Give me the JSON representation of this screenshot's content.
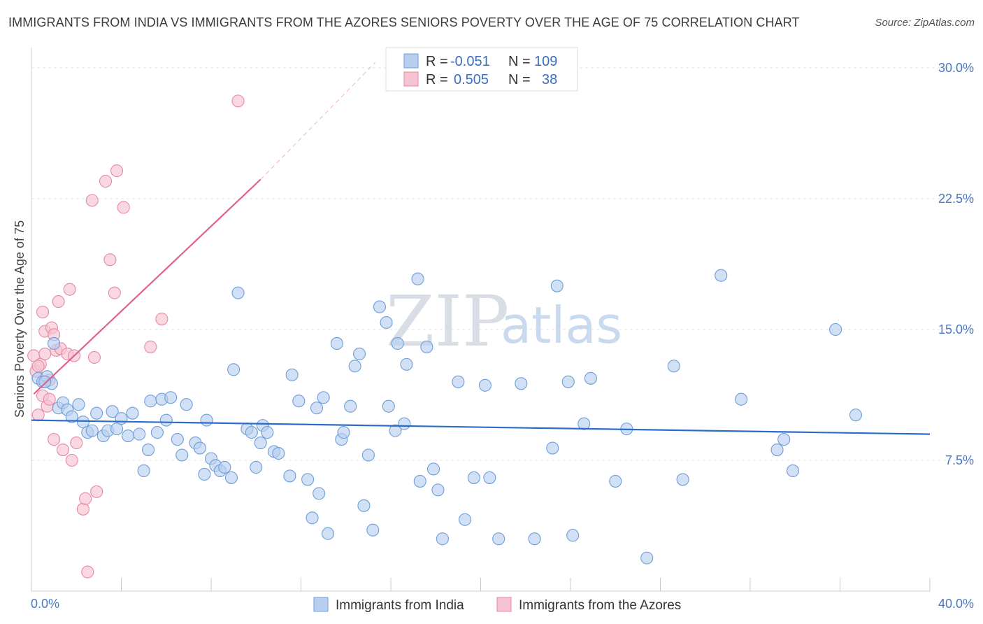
{
  "title": "IMMIGRANTS FROM INDIA VS IMMIGRANTS FROM THE AZORES SENIORS POVERTY OVER THE AGE OF 75 CORRELATION CHART",
  "source": "Source: ZipAtlas.com",
  "watermark": {
    "zip": "ZIP",
    "atlas": "atlas"
  },
  "colors": {
    "india_fill": "#b8cff0",
    "india_stroke": "#6f9ed8",
    "india_line": "#2a6cc8",
    "azores_fill": "#f6c3d2",
    "azores_stroke": "#e58aa6",
    "azores_line": "#e0628a",
    "grid": "#e3e3e3",
    "axis_text": "#4a78c2"
  },
  "legend": {
    "r_label": "R =",
    "n_label": "N =",
    "india": {
      "r": "-0.051",
      "n": "109"
    },
    "azores": {
      "r": "0.505",
      "n": "38"
    }
  },
  "chart_data": {
    "type": "scatter",
    "title": "IMMIGRANTS FROM INDIA VS IMMIGRANTS FROM THE AZORES SENIORS POVERTY OVER THE AGE OF 75 CORRELATION CHART",
    "xlabel": "",
    "ylabel": "Seniors Poverty Over the Age of 75",
    "xlim": [
      0,
      40
    ],
    "ylim": [
      0,
      31
    ],
    "x_tick_labels": {
      "left": "0.0%",
      "right": "40.0%"
    },
    "y_ticks": [
      {
        "value": 7.5,
        "label": "7.5%"
      },
      {
        "value": 15.0,
        "label": "15.0%"
      },
      {
        "value": 22.5,
        "label": "22.5%"
      },
      {
        "value": 30.0,
        "label": "30.0%"
      }
    ],
    "grid": true,
    "series": [
      {
        "name": "Immigrants from India",
        "r": -0.051,
        "n": 109,
        "trend": {
          "x": [
            0,
            40
          ],
          "y": [
            9.8,
            9.0
          ]
        },
        "points": [
          [
            0.3,
            12.2
          ],
          [
            0.5,
            12.0
          ],
          [
            0.7,
            12.3
          ],
          [
            0.9,
            11.9
          ],
          [
            1.0,
            14.2
          ],
          [
            1.2,
            10.5
          ],
          [
            1.4,
            10.8
          ],
          [
            1.6,
            10.4
          ],
          [
            1.8,
            10.0
          ],
          [
            2.1,
            10.7
          ],
          [
            2.3,
            9.7
          ],
          [
            2.5,
            9.1
          ],
          [
            2.7,
            9.2
          ],
          [
            2.9,
            10.2
          ],
          [
            3.2,
            8.9
          ],
          [
            3.4,
            9.2
          ],
          [
            3.6,
            10.3
          ],
          [
            3.8,
            9.3
          ],
          [
            4.0,
            9.9
          ],
          [
            4.3,
            8.9
          ],
          [
            4.5,
            10.2
          ],
          [
            4.8,
            9.0
          ],
          [
            5.0,
            6.9
          ],
          [
            5.2,
            8.1
          ],
          [
            5.3,
            10.9
          ],
          [
            5.6,
            9.1
          ],
          [
            5.8,
            11.0
          ],
          [
            6.0,
            9.8
          ],
          [
            6.2,
            11.1
          ],
          [
            6.5,
            8.7
          ],
          [
            6.7,
            7.8
          ],
          [
            6.9,
            10.7
          ],
          [
            7.3,
            8.5
          ],
          [
            7.5,
            8.2
          ],
          [
            7.7,
            6.7
          ],
          [
            7.8,
            9.8
          ],
          [
            8.0,
            7.6
          ],
          [
            8.2,
            7.2
          ],
          [
            8.4,
            6.9
          ],
          [
            8.6,
            7.1
          ],
          [
            9.0,
            12.7
          ],
          [
            8.9,
            6.5
          ],
          [
            9.2,
            17.1
          ],
          [
            9.6,
            9.3
          ],
          [
            9.8,
            9.1
          ],
          [
            10.0,
            7.1
          ],
          [
            10.2,
            8.5
          ],
          [
            10.3,
            9.5
          ],
          [
            10.5,
            9.1
          ],
          [
            10.8,
            8.0
          ],
          [
            11.0,
            7.9
          ],
          [
            11.5,
            6.6
          ],
          [
            11.6,
            12.4
          ],
          [
            11.9,
            10.9
          ],
          [
            12.3,
            6.4
          ],
          [
            12.5,
            4.2
          ],
          [
            12.7,
            10.5
          ],
          [
            12.8,
            5.6
          ],
          [
            13.0,
            11.1
          ],
          [
            13.2,
            3.3
          ],
          [
            13.6,
            14.2
          ],
          [
            13.8,
            8.7
          ],
          [
            13.9,
            9.1
          ],
          [
            14.2,
            10.6
          ],
          [
            14.4,
            12.9
          ],
          [
            14.6,
            13.6
          ],
          [
            14.8,
            4.9
          ],
          [
            15.0,
            7.8
          ],
          [
            15.2,
            3.5
          ],
          [
            15.5,
            16.3
          ],
          [
            15.8,
            15.4
          ],
          [
            15.9,
            10.6
          ],
          [
            16.2,
            9.2
          ],
          [
            16.3,
            14.2
          ],
          [
            16.6,
            9.6
          ],
          [
            16.7,
            13.0
          ],
          [
            17.2,
            17.9
          ],
          [
            17.3,
            6.3
          ],
          [
            17.6,
            14.0
          ],
          [
            17.9,
            7.0
          ],
          [
            18.1,
            5.8
          ],
          [
            18.3,
            3.0
          ],
          [
            19.0,
            12.0
          ],
          [
            19.3,
            4.1
          ],
          [
            19.7,
            6.5
          ],
          [
            20.2,
            11.8
          ],
          [
            20.4,
            6.5
          ],
          [
            20.8,
            3.0
          ],
          [
            21.8,
            11.9
          ],
          [
            22.4,
            3.0
          ],
          [
            23.2,
            8.2
          ],
          [
            23.4,
            17.5
          ],
          [
            23.9,
            12.0
          ],
          [
            24.1,
            3.2
          ],
          [
            24.6,
            9.6
          ],
          [
            24.9,
            12.2
          ],
          [
            26.0,
            6.3
          ],
          [
            26.5,
            9.3
          ],
          [
            27.4,
            1.9
          ],
          [
            28.6,
            12.9
          ],
          [
            29.0,
            6.4
          ],
          [
            30.7,
            18.1
          ],
          [
            31.6,
            11.0
          ],
          [
            33.2,
            8.1
          ],
          [
            33.5,
            8.7
          ],
          [
            33.9,
            6.9
          ],
          [
            35.8,
            15.0
          ],
          [
            36.7,
            10.1
          ],
          [
            0.6,
            12.0
          ]
        ]
      },
      {
        "name": "Immigrants from the Azores",
        "r": 0.505,
        "n": 38,
        "trend": {
          "x": [
            0.1,
            10.2
          ],
          "y": [
            11.3,
            23.6
          ],
          "dashed_to": [
            15.3,
            30.3
          ]
        },
        "points": [
          [
            0.1,
            13.5
          ],
          [
            0.2,
            12.6
          ],
          [
            0.3,
            10.1
          ],
          [
            0.4,
            13.0
          ],
          [
            0.5,
            11.2
          ],
          [
            0.5,
            16.0
          ],
          [
            0.6,
            14.9
          ],
          [
            0.7,
            10.6
          ],
          [
            0.8,
            11.0
          ],
          [
            0.9,
            15.1
          ],
          [
            1.0,
            14.7
          ],
          [
            1.1,
            13.8
          ],
          [
            1.0,
            8.7
          ],
          [
            1.2,
            16.6
          ],
          [
            1.3,
            13.9
          ],
          [
            1.4,
            8.1
          ],
          [
            1.6,
            13.6
          ],
          [
            1.7,
            17.3
          ],
          [
            1.8,
            7.5
          ],
          [
            1.9,
            13.5
          ],
          [
            2.0,
            8.5
          ],
          [
            2.3,
            4.7
          ],
          [
            2.4,
            5.3
          ],
          [
            2.5,
            1.1
          ],
          [
            2.7,
            22.4
          ],
          [
            2.8,
            13.4
          ],
          [
            2.9,
            5.7
          ],
          [
            3.3,
            23.5
          ],
          [
            3.5,
            19.0
          ],
          [
            3.8,
            24.1
          ],
          [
            3.7,
            17.1
          ],
          [
            4.1,
            22.0
          ],
          [
            5.3,
            14.0
          ],
          [
            5.8,
            15.6
          ],
          [
            9.2,
            28.1
          ],
          [
            0.3,
            12.9
          ],
          [
            0.6,
            13.6
          ],
          [
            0.8,
            12.1
          ]
        ]
      }
    ]
  },
  "bottom_legend": {
    "india": "Immigrants from India",
    "azores": "Immigrants from the Azores"
  }
}
